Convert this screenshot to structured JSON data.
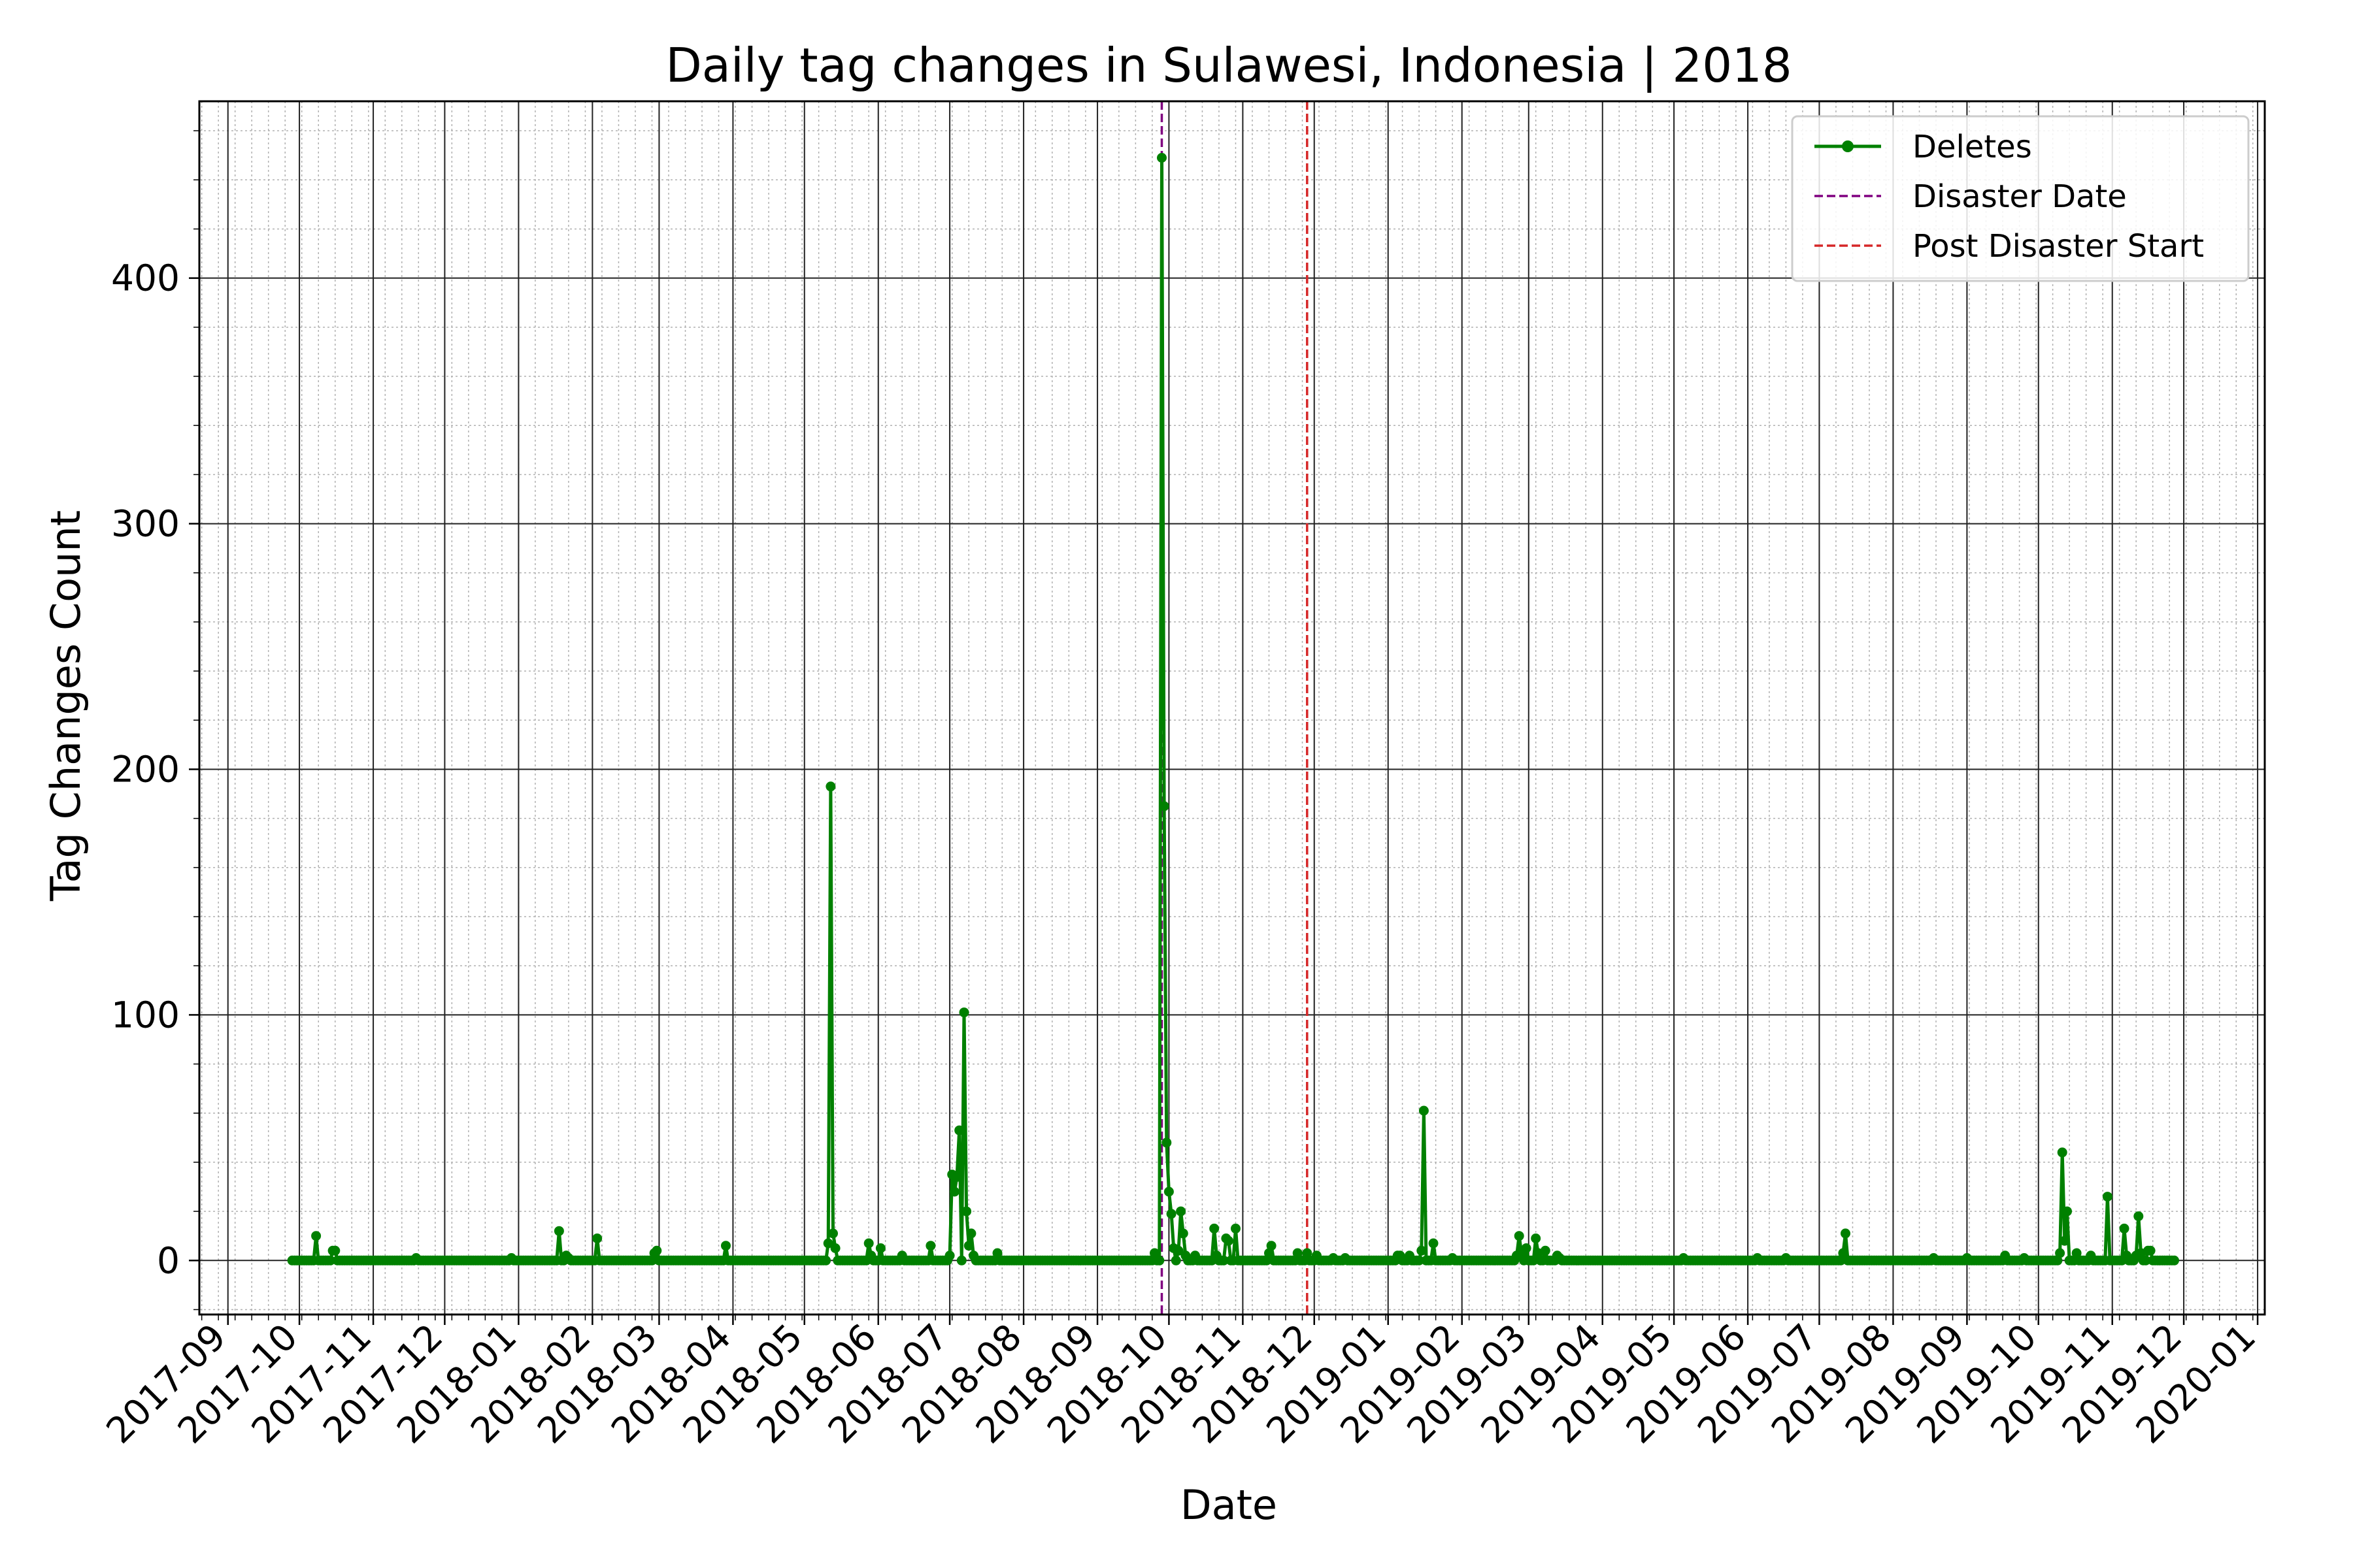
{
  "chart_data": {
    "type": "line",
    "title": "Daily tag changes in Sulawesi, Indonesia | 2018",
    "xlabel": "Date",
    "ylabel": "Tag Changes Count",
    "xlim": [
      "2017-08-20",
      "2020-01-04"
    ],
    "ylim": [
      -22,
      472
    ],
    "y_ticks": [
      0,
      100,
      200,
      300,
      400
    ],
    "x_ticks": [
      "2017-09",
      "2017-10",
      "2017-11",
      "2017-12",
      "2018-01",
      "2018-02",
      "2018-03",
      "2018-04",
      "2018-05",
      "2018-06",
      "2018-07",
      "2018-08",
      "2018-09",
      "2018-10",
      "2018-11",
      "2018-12",
      "2019-01",
      "2019-02",
      "2019-03",
      "2019-04",
      "2019-05",
      "2019-06",
      "2019-07",
      "2019-08",
      "2019-09",
      "2019-10",
      "2019-11",
      "2019-12",
      "2020-01"
    ],
    "grid": true,
    "legend_position": "top-right",
    "series": [
      {
        "name": "Deletes",
        "color": "#008000",
        "marker": "circle",
        "line_style": "solid",
        "x_range": [
          "2017-09-28",
          "2019-11-27"
        ],
        "baseline": 0,
        "points": [
          [
            "2017-10-08",
            10
          ],
          [
            "2017-10-09",
            0
          ],
          [
            "2017-10-15",
            4
          ],
          [
            "2017-10-16",
            4
          ],
          [
            "2017-10-17",
            0
          ],
          [
            "2017-11-19",
            1
          ],
          [
            "2017-11-20",
            0
          ],
          [
            "2017-12-29",
            1
          ],
          [
            "2017-12-30",
            0
          ],
          [
            "2018-01-18",
            12
          ],
          [
            "2018-01-19",
            0
          ],
          [
            "2018-01-21",
            2
          ],
          [
            "2018-01-22",
            1
          ],
          [
            "2018-01-23",
            0
          ],
          [
            "2018-02-03",
            9
          ],
          [
            "2018-02-04",
            0
          ],
          [
            "2018-02-27",
            3
          ],
          [
            "2018-02-28",
            4
          ],
          [
            "2018-03-01",
            0
          ],
          [
            "2018-03-29",
            6
          ],
          [
            "2018-03-30",
            0
          ],
          [
            "2018-05-11",
            7
          ],
          [
            "2018-05-12",
            193
          ],
          [
            "2018-05-13",
            11
          ],
          [
            "2018-05-14",
            5
          ],
          [
            "2018-05-15",
            0
          ],
          [
            "2018-05-28",
            7
          ],
          [
            "2018-05-29",
            2
          ],
          [
            "2018-05-30",
            0
          ],
          [
            "2018-06-02",
            5
          ],
          [
            "2018-06-03",
            0
          ],
          [
            "2018-06-11",
            2
          ],
          [
            "2018-06-12",
            0
          ],
          [
            "2018-06-23",
            6
          ],
          [
            "2018-06-24",
            0
          ],
          [
            "2018-07-01",
            2
          ],
          [
            "2018-07-02",
            35
          ],
          [
            "2018-07-03",
            28
          ],
          [
            "2018-07-04",
            34
          ],
          [
            "2018-07-05",
            53
          ],
          [
            "2018-07-06",
            0
          ],
          [
            "2018-07-07",
            101
          ],
          [
            "2018-07-08",
            20
          ],
          [
            "2018-07-09",
            6
          ],
          [
            "2018-07-10",
            11
          ],
          [
            "2018-07-11",
            2
          ],
          [
            "2018-07-12",
            0
          ],
          [
            "2018-07-21",
            3
          ],
          [
            "2018-07-22",
            0
          ],
          [
            "2018-09-25",
            3
          ],
          [
            "2018-09-26",
            0
          ],
          [
            "2018-09-27",
            0
          ],
          [
            "2018-09-28",
            449
          ],
          [
            "2018-09-29",
            185
          ],
          [
            "2018-09-30",
            48
          ],
          [
            "2018-10-01",
            28
          ],
          [
            "2018-10-02",
            19
          ],
          [
            "2018-10-03",
            5
          ],
          [
            "2018-10-04",
            0
          ],
          [
            "2018-10-05",
            4
          ],
          [
            "2018-10-06",
            20
          ],
          [
            "2018-10-07",
            11
          ],
          [
            "2018-10-08",
            2
          ],
          [
            "2018-10-09",
            0
          ],
          [
            "2018-10-12",
            2
          ],
          [
            "2018-10-13",
            0
          ],
          [
            "2018-10-20",
            13
          ],
          [
            "2018-10-21",
            2
          ],
          [
            "2018-10-22",
            0
          ],
          [
            "2018-10-25",
            9
          ],
          [
            "2018-10-26",
            8
          ],
          [
            "2018-10-27",
            0
          ],
          [
            "2018-10-29",
            13
          ],
          [
            "2018-10-30",
            0
          ],
          [
            "2018-11-12",
            3
          ],
          [
            "2018-11-13",
            6
          ],
          [
            "2018-11-14",
            0
          ],
          [
            "2018-11-24",
            3
          ],
          [
            "2018-11-25",
            0
          ],
          [
            "2018-11-28",
            3
          ],
          [
            "2018-11-29",
            0
          ],
          [
            "2018-12-02",
            2
          ],
          [
            "2018-12-03",
            0
          ],
          [
            "2018-12-09",
            1
          ],
          [
            "2018-12-10",
            0
          ],
          [
            "2018-12-14",
            1
          ],
          [
            "2018-12-15",
            0
          ],
          [
            "2019-01-05",
            2
          ],
          [
            "2019-01-06",
            2
          ],
          [
            "2019-01-07",
            0
          ],
          [
            "2019-01-10",
            2
          ],
          [
            "2019-01-11",
            0
          ],
          [
            "2019-01-15",
            4
          ],
          [
            "2019-01-16",
            61
          ],
          [
            "2019-01-17",
            0
          ],
          [
            "2019-01-20",
            7
          ],
          [
            "2019-01-21",
            0
          ],
          [
            "2019-01-28",
            1
          ],
          [
            "2019-01-29",
            0
          ],
          [
            "2019-02-24",
            2
          ],
          [
            "2019-02-25",
            10
          ],
          [
            "2019-02-26",
            3
          ],
          [
            "2019-02-27",
            0
          ],
          [
            "2019-02-28",
            5
          ],
          [
            "2019-03-01",
            0
          ],
          [
            "2019-03-04",
            9
          ],
          [
            "2019-03-05",
            3
          ],
          [
            "2019-03-06",
            0
          ],
          [
            "2019-03-08",
            4
          ],
          [
            "2019-03-09",
            0
          ],
          [
            "2019-03-13",
            2
          ],
          [
            "2019-03-14",
            1
          ],
          [
            "2019-03-15",
            0
          ],
          [
            "2019-05-05",
            1
          ],
          [
            "2019-05-06",
            0
          ],
          [
            "2019-06-05",
            1
          ],
          [
            "2019-06-06",
            0
          ],
          [
            "2019-06-17",
            1
          ],
          [
            "2019-06-18",
            0
          ],
          [
            "2019-07-11",
            3
          ],
          [
            "2019-07-12",
            11
          ],
          [
            "2019-07-13",
            0
          ],
          [
            "2019-08-18",
            1
          ],
          [
            "2019-08-19",
            0
          ],
          [
            "2019-09-01",
            1
          ],
          [
            "2019-09-02",
            0
          ],
          [
            "2019-09-17",
            2
          ],
          [
            "2019-09-18",
            0
          ],
          [
            "2019-09-25",
            1
          ],
          [
            "2019-09-26",
            0
          ],
          [
            "2019-10-10",
            3
          ],
          [
            "2019-10-11",
            44
          ],
          [
            "2019-10-12",
            8
          ],
          [
            "2019-10-13",
            20
          ],
          [
            "2019-10-14",
            0
          ],
          [
            "2019-10-17",
            3
          ],
          [
            "2019-10-18",
            0
          ],
          [
            "2019-10-23",
            2
          ],
          [
            "2019-10-24",
            0
          ],
          [
            "2019-10-30",
            26
          ],
          [
            "2019-10-31",
            0
          ],
          [
            "2019-11-06",
            13
          ],
          [
            "2019-11-07",
            2
          ],
          [
            "2019-11-08",
            0
          ],
          [
            "2019-11-11",
            2
          ],
          [
            "2019-11-12",
            18
          ],
          [
            "2019-11-13",
            3
          ],
          [
            "2019-11-14",
            0
          ],
          [
            "2019-11-16",
            4
          ],
          [
            "2019-11-17",
            4
          ]
        ]
      }
    ],
    "reference_lines": [
      {
        "name": "Disaster Date",
        "x": "2018-09-28",
        "color": "#800080",
        "line_style": "dashed"
      },
      {
        "name": "Post Disaster Start",
        "x": "2018-11-28",
        "color": "#d62728",
        "line_style": "dashed"
      }
    ]
  }
}
